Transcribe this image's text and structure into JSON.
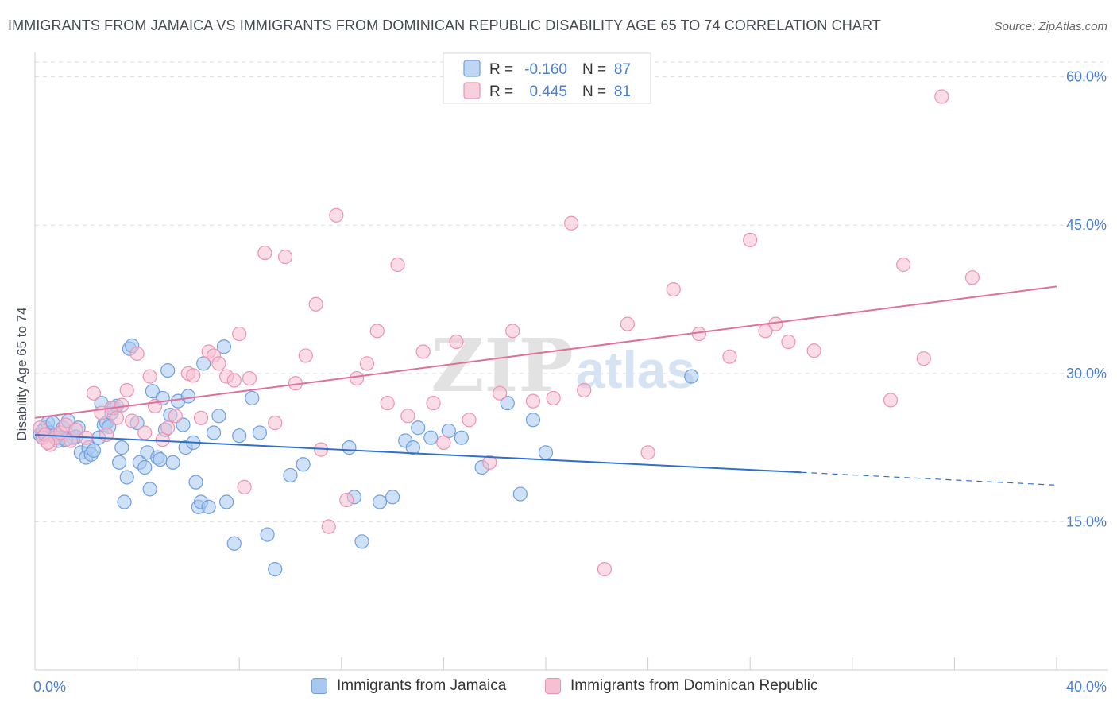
{
  "title": "IMMIGRANTS FROM JAMAICA VS IMMIGRANTS FROM DOMINICAN REPUBLIC DISABILITY AGE 65 TO 74 CORRELATION CHART",
  "source": "Source: ZipAtlas.com",
  "watermark": {
    "zip": "ZIP",
    "atlas": "atlas"
  },
  "legend": {
    "rows": [
      {
        "r_label": "R =",
        "r_value": "-0.160",
        "n_label": "N =",
        "n_value": "87"
      },
      {
        "r_label": "R =",
        "r_value": "0.445",
        "n_label": "N =",
        "n_value": "81"
      }
    ]
  },
  "colors": {
    "jamaica_fill": "#a8c8f0",
    "jamaica_stroke": "#6f9fe0",
    "jamaica_line": "#2f6fce",
    "dominican_fill": "#f6bfd2",
    "dominican_stroke": "#ec93b2",
    "dominican_line": "#e0709a",
    "axis_label": "#4a7fd0",
    "grid": "#dddddd"
  },
  "chart_data": {
    "type": "scatter",
    "xlabel": "",
    "ylabel": "Disability Age 65 to 74",
    "xlim": [
      0,
      40
    ],
    "ylim": [
      0,
      61.5
    ],
    "x_tick_labels": [
      {
        "value": 0,
        "label": "0.0%"
      },
      {
        "value": 40,
        "label": "40.0%"
      }
    ],
    "y_tick_labels": [
      {
        "value": 15,
        "label": "15.0%"
      },
      {
        "value": 30,
        "label": "30.0%"
      },
      {
        "value": 45,
        "label": "45.0%"
      },
      {
        "value": 60,
        "label": "60.0%"
      }
    ],
    "x_minor_ticks": [
      0,
      4,
      8,
      12,
      16,
      20,
      24,
      28,
      32,
      36,
      40
    ],
    "grid": true,
    "legend_position": "top-center",
    "series": [
      {
        "name": "Immigrants from Jamaica",
        "r": -0.16,
        "n": 87,
        "trend": {
          "x0": 0,
          "y0": 23.8,
          "x1": 30,
          "y1": 20.0,
          "dashed_to_x": 40,
          "dashed_to_y": 18.7
        },
        "points": [
          [
            0.2,
            23.8
          ],
          [
            0.3,
            23.5
          ],
          [
            0.4,
            24.5
          ],
          [
            0.5,
            25.0
          ],
          [
            0.6,
            24.0
          ],
          [
            0.7,
            25.0
          ],
          [
            0.8,
            23.8
          ],
          [
            1.0,
            23.5
          ],
          [
            1.1,
            24.5
          ],
          [
            1.3,
            25.2
          ],
          [
            1.5,
            23.5
          ],
          [
            1.7,
            24.5
          ],
          [
            1.8,
            22.0
          ],
          [
            2.0,
            21.5
          ],
          [
            2.1,
            22.5
          ],
          [
            2.2,
            21.8
          ],
          [
            2.3,
            22.2
          ],
          [
            2.5,
            23.5
          ],
          [
            2.6,
            27.0
          ],
          [
            2.7,
            24.8
          ],
          [
            2.8,
            25.0
          ],
          [
            3.0,
            26.0
          ],
          [
            3.1,
            26.5
          ],
          [
            3.3,
            21.0
          ],
          [
            3.4,
            22.5
          ],
          [
            3.5,
            17.0
          ],
          [
            3.6,
            19.5
          ],
          [
            3.7,
            32.5
          ],
          [
            3.8,
            32.8
          ],
          [
            4.0,
            25.0
          ],
          [
            4.1,
            21.0
          ],
          [
            4.3,
            20.5
          ],
          [
            4.4,
            22.0
          ],
          [
            4.5,
            18.3
          ],
          [
            4.6,
            28.2
          ],
          [
            4.8,
            21.5
          ],
          [
            4.9,
            21.3
          ],
          [
            5.0,
            27.5
          ],
          [
            5.1,
            24.3
          ],
          [
            5.2,
            30.3
          ],
          [
            5.3,
            25.8
          ],
          [
            5.4,
            21.0
          ],
          [
            5.6,
            27.2
          ],
          [
            5.8,
            24.8
          ],
          [
            5.9,
            22.5
          ],
          [
            6.0,
            27.7
          ],
          [
            6.2,
            23.0
          ],
          [
            6.3,
            19.0
          ],
          [
            6.4,
            16.5
          ],
          [
            6.5,
            17.0
          ],
          [
            6.6,
            31.0
          ],
          [
            6.8,
            16.5
          ],
          [
            7.0,
            24.0
          ],
          [
            7.2,
            25.7
          ],
          [
            7.4,
            32.7
          ],
          [
            7.5,
            17.0
          ],
          [
            7.8,
            12.8
          ],
          [
            8.0,
            23.7
          ],
          [
            8.5,
            27.5
          ],
          [
            8.8,
            24.0
          ],
          [
            9.1,
            13.7
          ],
          [
            9.4,
            10.2
          ],
          [
            10.0,
            19.7
          ],
          [
            10.5,
            20.8
          ],
          [
            12.3,
            22.5
          ],
          [
            12.5,
            17.5
          ],
          [
            12.8,
            13.0
          ],
          [
            13.5,
            17.0
          ],
          [
            14.0,
            17.5
          ],
          [
            14.5,
            23.2
          ],
          [
            14.8,
            22.5
          ],
          [
            15.0,
            24.5
          ],
          [
            15.5,
            23.5
          ],
          [
            16.2,
            24.2
          ],
          [
            16.7,
            23.5
          ],
          [
            17.5,
            20.5
          ],
          [
            18.5,
            27.0
          ],
          [
            19.0,
            17.8
          ],
          [
            19.5,
            25.3
          ],
          [
            20.0,
            22.0
          ],
          [
            0.3,
            24.2
          ],
          [
            0.9,
            23.2
          ],
          [
            1.6,
            23.6
          ],
          [
            2.9,
            24.6
          ],
          [
            25.7,
            29.7
          ],
          [
            3.2,
            26.7
          ],
          [
            1.2,
            23.3
          ]
        ]
      },
      {
        "name": "Immigrants from Dominican Republic",
        "r": 0.445,
        "n": 81,
        "trend": {
          "x0": 0,
          "y0": 25.5,
          "x1": 40,
          "y1": 38.8
        },
        "points": [
          [
            0.2,
            24.5
          ],
          [
            0.3,
            23.5
          ],
          [
            0.4,
            23.8
          ],
          [
            0.6,
            22.8
          ],
          [
            0.8,
            23.5
          ],
          [
            1.0,
            24.0
          ],
          [
            1.2,
            24.8
          ],
          [
            1.4,
            23.2
          ],
          [
            1.6,
            24.3
          ],
          [
            2.0,
            23.5
          ],
          [
            2.3,
            28.0
          ],
          [
            2.6,
            26.0
          ],
          [
            2.8,
            23.8
          ],
          [
            3.0,
            26.5
          ],
          [
            3.2,
            25.5
          ],
          [
            3.4,
            26.8
          ],
          [
            3.6,
            28.3
          ],
          [
            3.8,
            25.2
          ],
          [
            4.0,
            32.0
          ],
          [
            4.3,
            24.0
          ],
          [
            4.5,
            29.7
          ],
          [
            4.7,
            26.7
          ],
          [
            5.0,
            23.3
          ],
          [
            5.2,
            24.5
          ],
          [
            5.5,
            25.7
          ],
          [
            6.0,
            30.0
          ],
          [
            6.2,
            29.8
          ],
          [
            6.5,
            25.5
          ],
          [
            6.8,
            32.2
          ],
          [
            7.0,
            31.8
          ],
          [
            7.2,
            31.0
          ],
          [
            7.5,
            29.7
          ],
          [
            7.8,
            29.3
          ],
          [
            8.0,
            34.0
          ],
          [
            8.2,
            18.5
          ],
          [
            8.4,
            29.5
          ],
          [
            9.0,
            42.2
          ],
          [
            9.4,
            25.0
          ],
          [
            9.8,
            41.8
          ],
          [
            10.2,
            29.0
          ],
          [
            10.6,
            31.8
          ],
          [
            11.0,
            37.0
          ],
          [
            11.2,
            22.3
          ],
          [
            11.5,
            14.5
          ],
          [
            11.8,
            46.0
          ],
          [
            12.2,
            17.2
          ],
          [
            12.6,
            29.5
          ],
          [
            13.0,
            31.0
          ],
          [
            13.4,
            34.3
          ],
          [
            13.8,
            27.0
          ],
          [
            14.2,
            41.0
          ],
          [
            14.6,
            25.7
          ],
          [
            15.2,
            32.2
          ],
          [
            15.6,
            27.0
          ],
          [
            16.0,
            23.0
          ],
          [
            16.5,
            33.2
          ],
          [
            17.0,
            25.3
          ],
          [
            17.8,
            21.0
          ],
          [
            18.2,
            28.0
          ],
          [
            18.7,
            34.3
          ],
          [
            19.5,
            27.2
          ],
          [
            20.3,
            27.5
          ],
          [
            21.0,
            45.2
          ],
          [
            21.5,
            28.3
          ],
          [
            22.3,
            10.2
          ],
          [
            23.2,
            35.0
          ],
          [
            24.0,
            22.0
          ],
          [
            25.0,
            38.5
          ],
          [
            26.0,
            34.0
          ],
          [
            27.2,
            31.7
          ],
          [
            28.0,
            43.5
          ],
          [
            28.6,
            34.3
          ],
          [
            29.0,
            35.0
          ],
          [
            29.5,
            33.2
          ],
          [
            30.5,
            32.3
          ],
          [
            33.5,
            27.3
          ],
          [
            34.0,
            41.0
          ],
          [
            34.8,
            31.5
          ],
          [
            35.5,
            58.0
          ],
          [
            36.7,
            39.7
          ],
          [
            0.5,
            23.0
          ]
        ]
      }
    ]
  }
}
